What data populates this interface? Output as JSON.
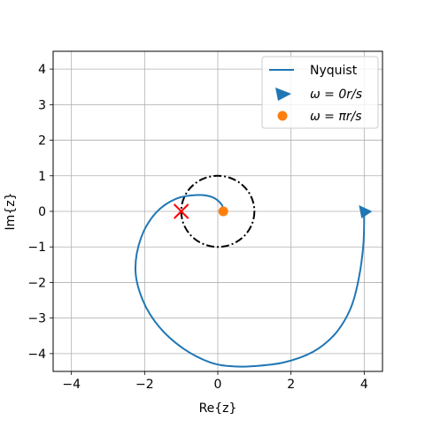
{
  "chart_data": {
    "type": "line",
    "xlabel": "Re{z}",
    "ylabel": "Im{z}",
    "xlim": [
      -4.5,
      4.5
    ],
    "ylim": [
      -4.5,
      4.5
    ],
    "xticks": [
      -4,
      -2,
      0,
      2,
      4
    ],
    "yticks": [
      -4,
      -3,
      -2,
      -1,
      0,
      1,
      2,
      3,
      4
    ],
    "xtick_labels": [
      "−4",
      "−2",
      "0",
      "2",
      "4"
    ],
    "ytick_labels": [
      "−4",
      "−3",
      "−2",
      "−1",
      "0",
      "1",
      "2",
      "3",
      "4"
    ],
    "grid": true,
    "legend_position": "top-right",
    "series": [
      {
        "name": "Nyquist",
        "kind": "line",
        "color": "#1f77b4",
        "points": [
          [
            4.0,
            0.0
          ],
          [
            3.98,
            -0.9
          ],
          [
            3.85,
            -1.9
          ],
          [
            3.62,
            -2.75
          ],
          [
            3.2,
            -3.45
          ],
          [
            2.6,
            -3.95
          ],
          [
            1.8,
            -4.25
          ],
          [
            1.0,
            -4.35
          ],
          [
            0.45,
            -4.36
          ],
          [
            -0.2,
            -4.25
          ],
          [
            -0.95,
            -3.85
          ],
          [
            -1.6,
            -3.25
          ],
          [
            -2.05,
            -2.5
          ],
          [
            -2.25,
            -1.65
          ],
          [
            -2.1,
            -0.75
          ],
          [
            -1.7,
            -0.05
          ],
          [
            -1.15,
            0.35
          ],
          [
            -0.55,
            0.46
          ],
          [
            -0.15,
            0.4
          ],
          [
            0.1,
            0.2
          ],
          [
            0.15,
            0.02
          ]
        ]
      },
      {
        "name": "ω = 0r/s",
        "kind": "marker",
        "marker": "triangle-right",
        "color": "#1f77b4",
        "points": [
          [
            4.0,
            0.0
          ]
        ]
      },
      {
        "name": "ω = πr/s",
        "kind": "marker",
        "marker": "circle",
        "color": "#ff7f0e",
        "points": [
          [
            0.15,
            0.0
          ]
        ]
      }
    ],
    "annotations": [
      {
        "kind": "unit-circle",
        "center": [
          0,
          0
        ],
        "radius": 1,
        "style": "dash-dot",
        "color": "#000000"
      },
      {
        "kind": "critical-point",
        "marker": "x",
        "color": "#ff0000",
        "point": [
          -1,
          0
        ]
      }
    ]
  }
}
